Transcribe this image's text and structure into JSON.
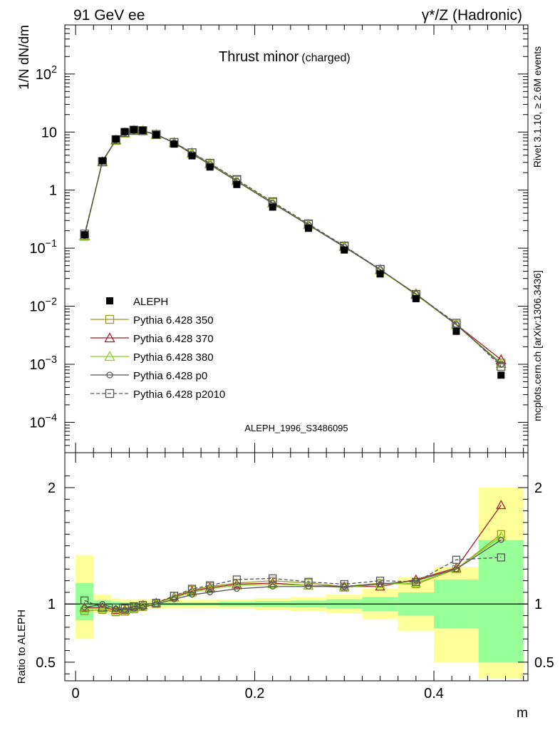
{
  "header": {
    "left": "91 GeV ee",
    "right": "γ*/Z (Hadronic)"
  },
  "side_labels": {
    "rivet": "Rivet 3.1.10, ≥ 2.6M events",
    "mcplots": "mcplots.cern.ch [arXiv:1306.3436]"
  },
  "chart_data": [
    {
      "type": "line",
      "title": "Thrust minor",
      "title_suffix": "(charged)",
      "ylabel": "1/N dN/dm",
      "xlabel": "",
      "yscale": "log",
      "ylim": [
        3e-05,
        700
      ],
      "xlim": [
        -0.012,
        0.505
      ],
      "y_ticks": [
        {
          "v": 100,
          "label": "10",
          "sup": "2"
        },
        {
          "v": 10,
          "label": "10",
          "sup": ""
        },
        {
          "v": 1,
          "label": "1",
          "sup": ""
        },
        {
          "v": 0.1,
          "label": "10",
          "sup": "−1"
        },
        {
          "v": 0.01,
          "label": "10",
          "sup": "−2"
        },
        {
          "v": 0.001,
          "label": "10",
          "sup": "−3"
        },
        {
          "v": 0.0001,
          "label": "10",
          "sup": "−4"
        }
      ],
      "watermark": "ALEPH_1996_S3486095",
      "legend_position": "lower-left",
      "x": [
        0.01,
        0.03,
        0.045,
        0.055,
        0.065,
        0.075,
        0.09,
        0.11,
        0.13,
        0.15,
        0.18,
        0.22,
        0.26,
        0.3,
        0.34,
        0.38,
        0.425,
        0.475
      ],
      "bin_edges": [
        0.0,
        0.02,
        0.04,
        0.05,
        0.06,
        0.07,
        0.08,
        0.1,
        0.12,
        0.14,
        0.16,
        0.2,
        0.24,
        0.28,
        0.32,
        0.36,
        0.4,
        0.45,
        0.5
      ],
      "data": {
        "name": "ALEPH",
        "color": "#000000",
        "values": [
          0.17,
          3.2,
          7.6,
          10.2,
          11.0,
          10.7,
          9.0,
          6.2,
          3.9,
          2.5,
          1.25,
          0.51,
          0.22,
          0.093,
          0.036,
          0.0135,
          0.0037,
          0.00065
        ]
      },
      "series": [
        {
          "name": "Pythia 6.428 350",
          "color": "#9a9a1e",
          "marker": "square-open",
          "dash": "solid",
          "values": [
            0.16,
            3.05,
            7.2,
            9.6,
            10.6,
            10.5,
            9.1,
            6.6,
            4.4,
            2.85,
            1.47,
            0.61,
            0.255,
            0.107,
            0.0427,
            0.0157,
            0.0048,
            0.00105
          ]
        },
        {
          "name": "Pythia 6.428 370",
          "color": "#a01c28",
          "marker": "triangle-open",
          "dash": "solid",
          "values": [
            0.165,
            3.1,
            7.3,
            9.7,
            10.7,
            10.6,
            9.1,
            6.6,
            4.35,
            2.85,
            1.46,
            0.6,
            0.255,
            0.107,
            0.0427,
            0.0163,
            0.00485,
            0.0012
          ]
        },
        {
          "name": "Pythia 6.428 380",
          "color": "#8ad01a",
          "marker": "triangle-open",
          "dash": "solid",
          "values": [
            0.163,
            3.08,
            7.25,
            9.65,
            10.65,
            10.55,
            9.05,
            6.55,
            4.3,
            2.82,
            1.45,
            0.6,
            0.253,
            0.106,
            0.0422,
            0.0158,
            0.00482,
            0.00103
          ]
        },
        {
          "name": "Pythia 6.428 p0",
          "color": "#555555",
          "marker": "circle-open",
          "dash": "solid",
          "values": [
            0.165,
            3.2,
            7.3,
            9.7,
            10.6,
            10.4,
            9.0,
            6.5,
            4.2,
            2.75,
            1.42,
            0.59,
            0.25,
            0.105,
            0.0425,
            0.0162,
            0.0048,
            0.001
          ]
        },
        {
          "name": "Pythia 6.428 p2010",
          "color": "#555555",
          "marker": "square-open",
          "dash": "dashed",
          "values": [
            0.175,
            3.1,
            7.4,
            9.8,
            10.8,
            10.6,
            9.1,
            6.6,
            4.4,
            2.9,
            1.52,
            0.63,
            0.262,
            0.109,
            0.0432,
            0.016,
            0.0051,
            0.00092
          ]
        }
      ]
    },
    {
      "type": "line",
      "ylabel": "Ratio to ALEPH",
      "xlabel": "m",
      "ylim": [
        0.34,
        2.3
      ],
      "xlim": [
        -0.012,
        0.505
      ],
      "y_ticks": [
        {
          "v": 2,
          "label": "2"
        },
        {
          "v": 1,
          "label": "1"
        },
        {
          "v": 0.5,
          "label": "0.5"
        }
      ],
      "x_ticks": [
        {
          "v": 0,
          "label": "0"
        },
        {
          "v": 0.2,
          "label": "0.2"
        },
        {
          "v": 0.4,
          "label": "0.4"
        }
      ],
      "bands": {
        "stat_color": "#99ff99",
        "total_color": "#ffff99",
        "stat": [
          [
            0.86,
            1.18
          ],
          [
            0.97,
            1.03
          ],
          [
            0.98,
            1.02
          ],
          [
            0.985,
            1.015
          ],
          [
            0.985,
            1.015
          ],
          [
            0.985,
            1.015
          ],
          [
            0.985,
            1.015
          ],
          [
            0.985,
            1.015
          ],
          [
            0.985,
            1.015
          ],
          [
            0.985,
            1.015
          ],
          [
            0.98,
            1.02
          ],
          [
            0.975,
            1.025
          ],
          [
            0.97,
            1.03
          ],
          [
            0.96,
            1.04
          ],
          [
            0.94,
            1.06
          ],
          [
            0.9,
            1.1
          ],
          [
            0.79,
            1.21
          ],
          [
            0.5,
            1.55
          ]
        ],
        "total": [
          [
            0.7,
            1.42
          ],
          [
            0.92,
            1.08
          ],
          [
            0.95,
            1.05
          ],
          [
            0.96,
            1.04
          ],
          [
            0.96,
            1.04
          ],
          [
            0.96,
            1.04
          ],
          [
            0.96,
            1.04
          ],
          [
            0.96,
            1.04
          ],
          [
            0.96,
            1.04
          ],
          [
            0.96,
            1.04
          ],
          [
            0.96,
            1.04
          ],
          [
            0.95,
            1.05
          ],
          [
            0.94,
            1.06
          ],
          [
            0.92,
            1.08
          ],
          [
            0.87,
            1.13
          ],
          [
            0.77,
            1.23
          ],
          [
            0.5,
            1.32
          ],
          [
            0.36,
            2.0
          ]
        ]
      },
      "series": [
        {
          "name": "Pythia 6.428 350",
          "values": [
            0.94,
            0.95,
            0.93,
            0.935,
            0.955,
            0.975,
            1.0,
            1.07,
            1.12,
            1.15,
            1.18,
            1.2,
            1.18,
            1.15,
            1.18,
            1.17,
            1.3,
            1.6
          ]
        },
        {
          "name": "Pythia 6.428 370",
          "values": [
            0.97,
            0.97,
            0.95,
            0.95,
            0.97,
            0.99,
            1.01,
            1.06,
            1.11,
            1.14,
            1.17,
            1.18,
            1.16,
            1.15,
            1.15,
            1.21,
            1.31,
            1.85
          ]
        },
        {
          "name": "Pythia 6.428 380",
          "values": [
            0.96,
            0.96,
            0.94,
            0.945,
            0.965,
            0.985,
            1.005,
            1.055,
            1.1,
            1.13,
            1.16,
            1.17,
            1.16,
            1.14,
            1.17,
            1.18,
            1.3,
            1.58
          ]
        },
        {
          "name": "Pythia 6.428 p0",
          "values": [
            0.97,
            1.0,
            0.96,
            0.95,
            0.96,
            0.97,
            1.0,
            1.04,
            1.08,
            1.1,
            1.13,
            1.15,
            1.15,
            1.15,
            1.17,
            1.2,
            1.3,
            1.55
          ]
        },
        {
          "name": "Pythia 6.428 p2010",
          "values": [
            1.03,
            0.97,
            0.97,
            0.96,
            0.98,
            0.99,
            1.01,
            1.07,
            1.13,
            1.16,
            1.21,
            1.22,
            1.19,
            1.17,
            1.2,
            1.19,
            1.38,
            1.4
          ]
        }
      ]
    }
  ]
}
